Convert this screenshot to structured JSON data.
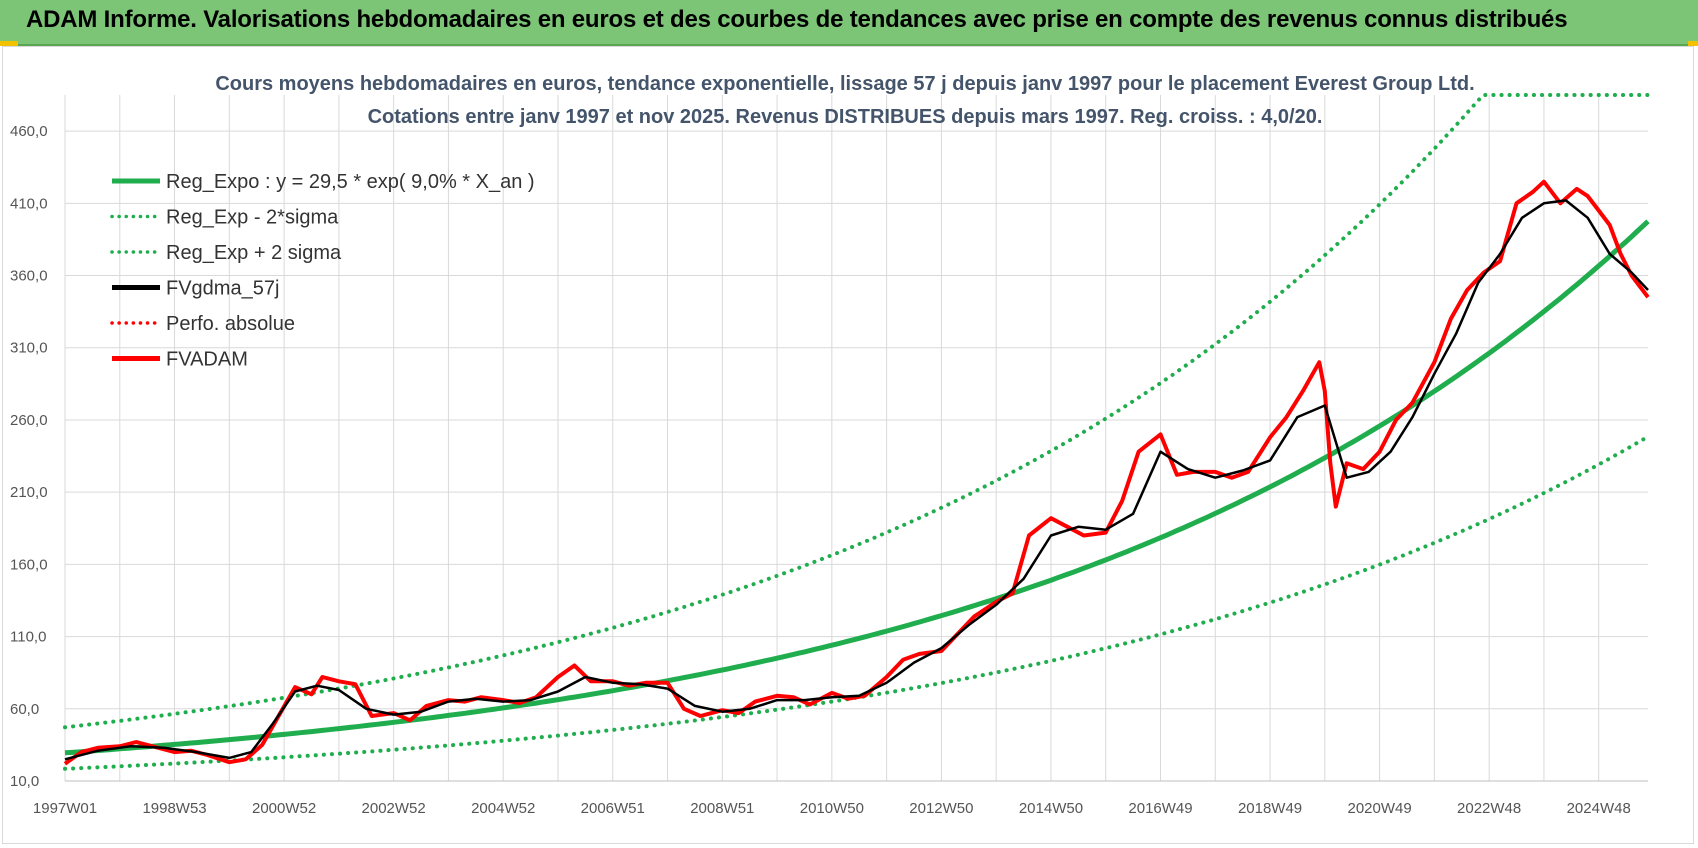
{
  "banner": {
    "title": "ADAM Informe. Valorisations hebdomadaires en euros et des courbes de tendances avec prise en compte des revenus connus distribués"
  },
  "colors": {
    "banner_bg": "#7cc576",
    "green": "#1fad4e",
    "black": "#000000",
    "red": "#ff0000",
    "title": "#44546a"
  },
  "chart_data": {
    "type": "line",
    "title_lines": [
      "Cours moyens hebdomadaires en euros, tendance exponentielle, lissage 57 j depuis janv 1997 pour le placement Everest Group Ltd.",
      "Cotations entre janv 1997 et nov 2025. Revenus DISTRIBUES depuis mars 1997. Reg. croiss. : 4,0/20."
    ],
    "x_ticks": [
      "1997W01",
      "1998W53",
      "2000W52",
      "2002W52",
      "2004W52",
      "2006W51",
      "2008W51",
      "2010W50",
      "2012W50",
      "2014W50",
      "2016W49",
      "2018W49",
      "2020W49",
      "2022W48",
      "2024W48"
    ],
    "x_tick_years": [
      1997.0,
      1999.0,
      2001.0,
      2003.0,
      2005.0,
      2007.0,
      2009.0,
      2011.0,
      2013.0,
      2015.0,
      2017.0,
      2019.0,
      2021.0,
      2023.0,
      2025.0
    ],
    "x_range": [
      1997.0,
      2025.9
    ],
    "y_ticks": [
      "10,0",
      "60,0",
      "110,0",
      "160,0",
      "210,0",
      "260,0",
      "310,0",
      "360,0",
      "410,0",
      "460,0"
    ],
    "y_tick_values": [
      10,
      60,
      110,
      160,
      210,
      260,
      310,
      360,
      410,
      460
    ],
    "ylim": [
      10,
      485
    ],
    "grid": true,
    "legend_position": "top-left",
    "regression": {
      "a": 29.5,
      "growth": 0.09,
      "sigma_factor": 1.6
    },
    "legend": [
      {
        "label": "Reg_Expo : y = 29,5 * exp( 9,0% *  X_an )",
        "color": "#1fad4e",
        "style": "solid"
      },
      {
        "label": "Reg_Exp - 2*sigma",
        "color": "#1fad4e",
        "style": "dotted"
      },
      {
        "label": "Reg_Exp + 2 sigma",
        "color": "#1fad4e",
        "style": "dotted"
      },
      {
        "label": "FVgdma_57j",
        "color": "#000000",
        "style": "solid"
      },
      {
        "label": "Perfo. absolue",
        "color": "#ff0000",
        "style": "dotted"
      },
      {
        "label": "FVADAM",
        "color": "#ff0000",
        "style": "solid"
      }
    ],
    "fvadam": {
      "name": "FVADAM",
      "x": [
        1997.0,
        1997.3,
        1997.6,
        1998.0,
        1998.3,
        1998.6,
        1999.0,
        1999.3,
        1999.6,
        2000.0,
        2000.3,
        2000.6,
        2000.9,
        2001.2,
        2001.5,
        2001.7,
        2002.0,
        2002.3,
        2002.6,
        2003.0,
        2003.3,
        2003.6,
        2004.0,
        2004.3,
        2004.6,
        2005.0,
        2005.3,
        2005.6,
        2006.0,
        2006.3,
        2006.6,
        2007.0,
        2007.3,
        2007.6,
        2008.0,
        2008.3,
        2008.6,
        2009.0,
        2009.3,
        2009.6,
        2010.0,
        2010.3,
        2010.6,
        2011.0,
        2011.3,
        2011.6,
        2012.0,
        2012.3,
        2012.6,
        2013.0,
        2013.3,
        2013.6,
        2014.0,
        2014.3,
        2014.6,
        2015.0,
        2015.3,
        2015.6,
        2016.0,
        2016.3,
        2016.6,
        2017.0,
        2017.3,
        2017.6,
        2018.0,
        2018.3,
        2018.6,
        2019.0,
        2019.3,
        2019.6,
        2019.9,
        2020.0,
        2020.1,
        2020.2,
        2020.4,
        2020.7,
        2021.0,
        2021.3,
        2021.6,
        2022.0,
        2022.3,
        2022.6,
        2022.9,
        2023.2,
        2023.5,
        2023.8,
        2024.0,
        2024.3,
        2024.6,
        2024.8,
        2025.0,
        2025.2,
        2025.4,
        2025.6,
        2025.9
      ],
      "y": [
        22,
        30,
        33,
        34,
        37,
        34,
        30,
        31,
        28,
        23,
        25,
        35,
        55,
        75,
        70,
        82,
        79,
        77,
        55,
        57,
        52,
        62,
        66,
        65,
        68,
        66,
        64,
        68,
        82,
        90,
        79,
        79,
        76,
        78,
        78,
        60,
        55,
        59,
        57,
        65,
        69,
        68,
        63,
        71,
        67,
        69,
        82,
        94,
        98,
        100,
        112,
        124,
        134,
        140,
        180,
        192,
        186,
        180,
        182,
        204,
        238,
        250,
        222,
        224,
        224,
        220,
        224,
        248,
        262,
        280,
        300,
        280,
        230,
        200,
        230,
        226,
        238,
        260,
        272,
        300,
        330,
        350,
        362,
        370,
        410,
        418,
        425,
        410,
        420,
        415,
        405,
        395,
        375,
        360,
        345
      ]
    },
    "fvgdma_57j": {
      "name": "FVgdma_57j",
      "x": [
        1997.0,
        1997.6,
        1998.2,
        1998.8,
        1999.4,
        2000.0,
        2000.4,
        2000.8,
        2001.2,
        2001.6,
        2002.0,
        2002.5,
        2003.0,
        2003.5,
        2004.0,
        2004.5,
        2005.0,
        2005.5,
        2006.0,
        2006.5,
        2007.0,
        2007.5,
        2008.0,
        2008.5,
        2009.0,
        2009.5,
        2010.0,
        2010.5,
        2011.0,
        2011.5,
        2012.0,
        2012.5,
        2013.0,
        2013.5,
        2014.0,
        2014.5,
        2015.0,
        2015.5,
        2016.0,
        2016.5,
        2017.0,
        2017.5,
        2018.0,
        2018.5,
        2019.0,
        2019.5,
        2020.0,
        2020.4,
        2020.8,
        2021.2,
        2021.6,
        2022.0,
        2022.4,
        2022.8,
        2023.2,
        2023.6,
        2024.0,
        2024.4,
        2024.8,
        2025.2,
        2025.6,
        2025.9
      ],
      "y": [
        25,
        31,
        34,
        33,
        30,
        26,
        30,
        50,
        72,
        76,
        73,
        60,
        56,
        58,
        65,
        67,
        65,
        66,
        72,
        82,
        78,
        77,
        74,
        62,
        58,
        60,
        66,
        66,
        68,
        69,
        78,
        92,
        102,
        118,
        132,
        150,
        180,
        186,
        184,
        195,
        238,
        226,
        220,
        225,
        232,
        262,
        270,
        220,
        224,
        238,
        262,
        292,
        320,
        355,
        375,
        400,
        410,
        412,
        400,
        375,
        362,
        350
      ]
    }
  }
}
